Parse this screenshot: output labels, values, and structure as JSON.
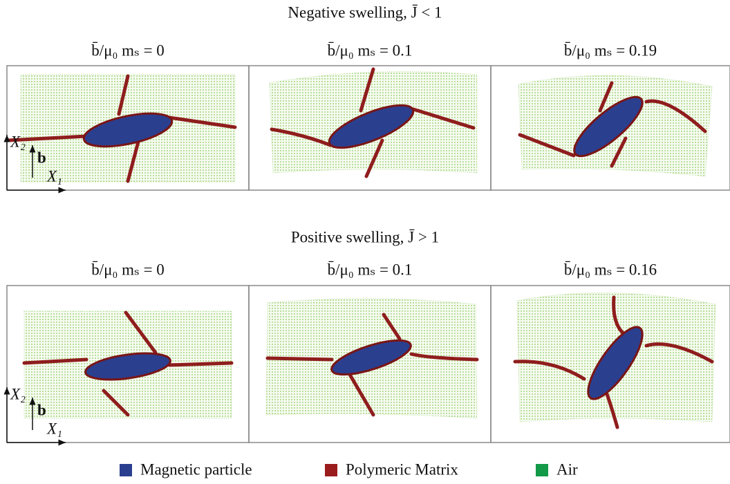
{
  "figure": {
    "rows": [
      {
        "title": "Negative swelling, J̄ < 1",
        "panels": [
          "b̄/μ₀ mₛ = 0",
          "b̄/μ₀ mₛ = 0.1",
          "b̄/μ₀ mₛ = 0.19"
        ]
      },
      {
        "title": "Positive swelling, J̄ > 1",
        "panels": [
          "b̄/μ₀ mₛ = 0",
          "b̄/μ₀ mₛ = 0.1",
          "b̄/μ₀ mₛ = 0.16"
        ]
      }
    ],
    "axes": {
      "x1": "X₁",
      "x2": "X₂",
      "field": "b"
    },
    "legend": [
      {
        "label": "Magnetic particle",
        "color": "#2b3f8f"
      },
      {
        "label": "Polymeric Matrix",
        "color": "#9b1c1c"
      },
      {
        "label": "Air",
        "color": "#129a48"
      }
    ]
  }
}
